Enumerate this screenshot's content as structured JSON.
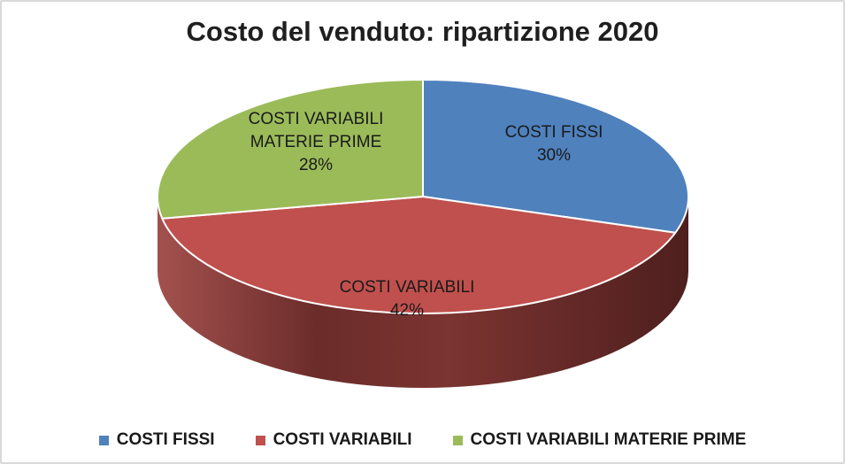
{
  "page": {
    "background": "#FFFFFF",
    "border_color": "#D9D9D9"
  },
  "chart_data": {
    "type": "pie",
    "is_3d": true,
    "title": "Costo del venduto: ripartizione 2020",
    "start_angle_deg": 0,
    "direction": "clockwise",
    "unit": "%",
    "categories": [
      "COSTI FISSI",
      "COSTI VARIABILI",
      "COSTI VARIABILI MATERIE PRIME"
    ],
    "values": [
      30,
      42,
      28
    ],
    "label_color": "#1A1A1A",
    "separator_color": "#FFFFFF",
    "slices": [
      {
        "name": "COSTI FISSI",
        "value": 30,
        "pct_label": "30%",
        "label_lines": [
          "COSTI FISSI"
        ],
        "color": "#4F81BD"
      },
      {
        "name": "COSTI VARIABILI",
        "value": 42,
        "pct_label": "42%",
        "label_lines": [
          "COSTI VARIABILI"
        ],
        "color": "#C0504D"
      },
      {
        "name": "COSTI VARIABILI MATERIE PRIME",
        "value": 28,
        "pct_label": "28%",
        "label_lines": [
          "COSTI VARIABILI",
          "MATERIE PRIME"
        ],
        "color": "#9BBB59"
      }
    ],
    "side_gradient": [
      "#A3514E",
      "#6B2C2A",
      "#7B3431",
      "#4E1F1E"
    ],
    "legend": {
      "position": "bottom",
      "items": [
        {
          "label": "COSTI FISSI",
          "color": "#4F81BD"
        },
        {
          "label": "COSTI VARIABILI",
          "color": "#C0504D"
        },
        {
          "label": "COSTI VARIABILI MATERIE PRIME",
          "color": "#9BBB59"
        }
      ]
    }
  }
}
